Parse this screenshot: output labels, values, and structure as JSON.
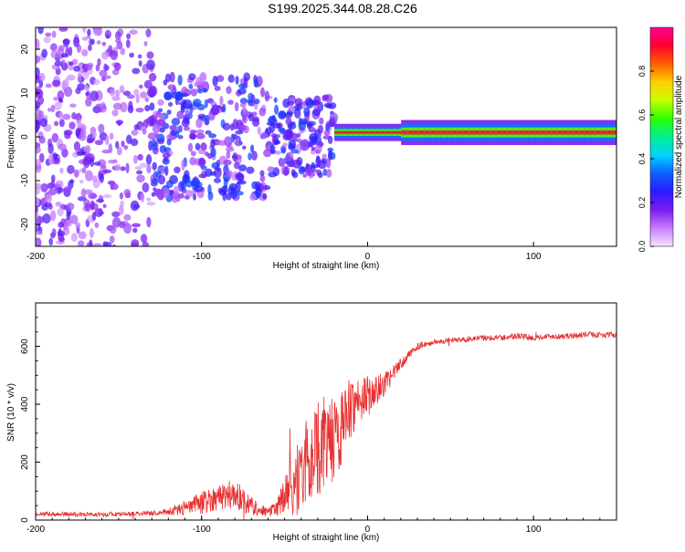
{
  "title": "S199.2025.344.08.28.C26",
  "chart_data": [
    {
      "type": "heatmap",
      "name": "spectrogram",
      "xlabel": "Height of straight line (km)",
      "ylabel": "Frequency (Hz)",
      "xlim": [
        -200,
        150
      ],
      "ylim": [
        -25,
        25
      ],
      "xticks": [
        -200,
        -100,
        0,
        100
      ],
      "xtick_labels": [
        "-200",
        "-100",
        "0",
        "100"
      ],
      "yticks": [
        -20,
        -10,
        0,
        10,
        20
      ],
      "ytick_labels": [
        "-20",
        "-10",
        "0",
        "10",
        "20"
      ],
      "colorbar": {
        "label": "Normalized spectral amplitude",
        "range": [
          0.0,
          1.0
        ],
        "ticks": [
          0.0,
          0.2,
          0.4,
          0.6,
          0.8
        ],
        "tick_labels": [
          "0.0",
          "0.2",
          "0.4",
          "0.6",
          "0.8"
        ],
        "colors": [
          "#f4e6ff",
          "#c77dff",
          "#7a1cf0",
          "#2a1cff",
          "#0a60ff",
          "#00d4ff",
          "#00f090",
          "#2cff00",
          "#c8ff00",
          "#ffd000",
          "#ff6000",
          "#ff0030",
          "#ff0090"
        ]
      },
      "signal": {
        "x_range": [
          -20,
          150
        ],
        "center_freq_hz": 1,
        "peak_amplitude": 0.9
      },
      "noise": {
        "x_range": [
          -200,
          -20
        ],
        "freq_range": [
          -25,
          25
        ]
      }
    },
    {
      "type": "line",
      "name": "snr",
      "xlabel": "Height of straight line (km)",
      "ylabel": "SNR (10 * v/v)",
      "xlim": [
        -200,
        150
      ],
      "ylim": [
        0,
        750
      ],
      "xticks": [
        -200,
        -100,
        0,
        100
      ],
      "xtick_labels": [
        "-200",
        "-100",
        "0",
        "100"
      ],
      "yticks": [
        0,
        200,
        400,
        600
      ],
      "ytick_labels": [
        "0",
        "200",
        "400",
        "600"
      ],
      "color": "#e83030",
      "x": [
        -200,
        -150,
        -125,
        -110,
        -100,
        -90,
        -80,
        -70,
        -60,
        -55,
        -50,
        -45,
        -40,
        -35,
        -30,
        -25,
        -20,
        -15,
        -10,
        -5,
        0,
        5,
        10,
        15,
        20,
        25,
        30,
        40,
        50,
        60,
        70,
        80,
        90,
        100,
        110,
        120,
        130,
        140,
        150
      ],
      "y": [
        20,
        20,
        25,
        40,
        60,
        80,
        90,
        50,
        25,
        40,
        80,
        120,
        160,
        210,
        250,
        270,
        280,
        330,
        390,
        420,
        430,
        440,
        470,
        500,
        540,
        570,
        600,
        615,
        620,
        625,
        630,
        630,
        635,
        630,
        635,
        635,
        640,
        640,
        640
      ],
      "noise_amplitude": [
        8,
        8,
        8,
        25,
        40,
        45,
        55,
        35,
        15,
        30,
        70,
        110,
        150,
        160,
        170,
        160,
        150,
        130,
        110,
        80,
        70,
        60,
        40,
        30,
        20,
        15,
        12,
        10,
        10,
        10,
        10,
        10,
        12,
        10,
        10,
        10,
        10,
        10,
        10
      ]
    }
  ]
}
